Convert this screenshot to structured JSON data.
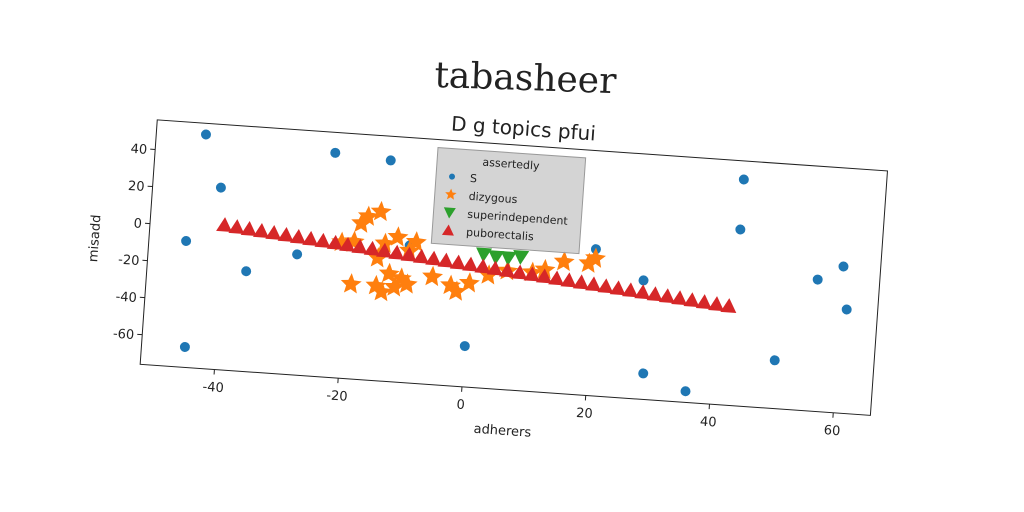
{
  "chart_data": {
    "type": "scatter",
    "suptitle": "tabasheer",
    "title": "D g topics pfui",
    "xlabel": "adherers",
    "ylabel": "misadd",
    "legend_title": "assertedly",
    "legend": "upper center",
    "xlim": [
      -52,
      66
    ],
    "ylim": [
      -76,
      56
    ],
    "xticks": [
      -40,
      -20,
      0,
      20,
      40,
      60
    ],
    "yticks": [
      -60,
      -40,
      -20,
      0,
      20,
      40
    ],
    "series": [
      {
        "name": "S",
        "color": "#1f77b4",
        "marker": "circle",
        "x": [
          -44,
          -41,
          -46,
          -45,
          -36,
          -28,
          -23,
          -14,
          -10,
          0,
          20,
          28,
          29,
          36,
          43,
          43,
          50,
          56,
          60,
          61
        ],
        "values": [
          50,
          22,
          -8,
          -65,
          -22,
          -11,
          45,
          43,
          -2,
          -54,
          3,
          -12,
          -62,
          -70,
          46,
          19,
          -50,
          -5,
          3,
          -20
        ]
      },
      {
        "name": "dizygous",
        "color": "#ff7f0e",
        "marker": "star",
        "x": [
          -15,
          -17,
          -18,
          -19,
          -21,
          -14,
          -12,
          -9,
          -10,
          -15,
          -13,
          -11,
          -15,
          -14,
          -19,
          -10,
          -12,
          -6,
          -3,
          -2,
          0,
          3,
          6,
          10,
          12,
          15,
          19,
          20
        ],
        "values": [
          15,
          12,
          8,
          -2,
          -3,
          -2,
          2,
          0,
          -5,
          -10,
          -18,
          -20,
          -25,
          -28,
          -25,
          -23,
          -25,
          -18,
          -22,
          -25,
          -20,
          -15,
          -12,
          -12,
          -10,
          -5,
          -5,
          -2
        ]
      },
      {
        "name": "superindependent",
        "color": "#2ca02c",
        "marker": "triangle-down",
        "x": [
          2,
          4,
          6,
          8
        ],
        "values": [
          -4,
          -5,
          -5,
          -4
        ]
      },
      {
        "name": "puborectalis",
        "color": "#d62728",
        "marker": "triangle-up",
        "x": [
          -40,
          -38,
          -36,
          -34,
          -32,
          -30,
          -28,
          -26,
          -24,
          -22,
          -20,
          -18,
          -16,
          -14,
          -12,
          -10,
          -8,
          -6,
          -4,
          -2,
          0,
          2,
          4,
          6,
          8,
          10,
          12,
          14,
          16,
          18,
          20,
          22,
          24,
          26,
          28,
          30,
          32,
          34,
          36,
          38,
          40,
          42
        ],
        "values": [
          2,
          1.4,
          0.8,
          0.2,
          -0.4,
          -1,
          -1.6,
          -2.2,
          -2.8,
          -3.4,
          -4,
          -4.6,
          -5.2,
          -5.8,
          -6.4,
          -7,
          -7.6,
          -8.2,
          -8.8,
          -9.4,
          -10,
          -10.6,
          -11.2,
          -11.8,
          -12.4,
          -13,
          -13.6,
          -14.2,
          -14.8,
          -15.4,
          -16,
          -16.6,
          -17.2,
          -17.8,
          -18.4,
          -19,
          -19.6,
          -20.2,
          -20.8,
          -21.4,
          -22,
          -22.6
        ]
      }
    ]
  }
}
